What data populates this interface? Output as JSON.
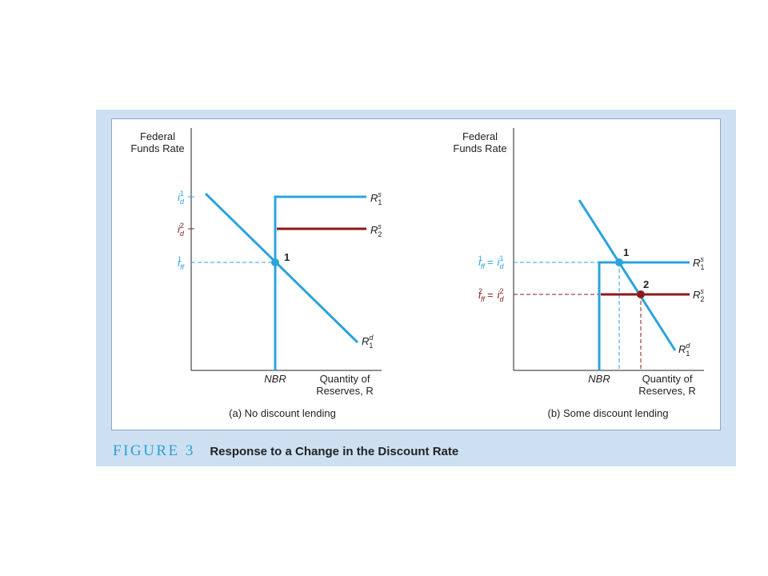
{
  "figure": {
    "number": "FIGURE 3",
    "title": "Response to a Change in the Discount Rate"
  },
  "colors": {
    "frame": "#cde0f2",
    "blue": "#2ba3dd",
    "darkred": "#8b1a1a",
    "axis": "#222222"
  },
  "panel_a": {
    "y_axis_label": [
      "Federal",
      "Funds Rate"
    ],
    "x_axis_label": [
      "Quantity of",
      "Reserves, R"
    ],
    "nbr_label": "NBR",
    "caption": "(a) No discount lending",
    "point_label": "1",
    "rate_labels": {
      "id1": {
        "base": "i",
        "sub": "d",
        "sup": "1"
      },
      "id2": {
        "base": "i",
        "sub": "d",
        "sup": "2"
      },
      "iff1": {
        "base": "i",
        "sub": "ff",
        "sup": "1"
      }
    },
    "curve_labels": {
      "supply1": {
        "base": "R",
        "sub": "1",
        "sup": "s"
      },
      "supply2": {
        "base": "R",
        "sub": "2",
        "sup": "s"
      },
      "demand1": {
        "base": "R",
        "sub": "1",
        "sup": "d"
      }
    }
  },
  "panel_b": {
    "y_axis_label": [
      "Federal",
      "Funds Rate"
    ],
    "x_axis_label": [
      "Quantity of",
      "Reserves, R"
    ],
    "nbr_label": "NBR",
    "caption": "(b) Some discount lending",
    "point_labels": [
      "1",
      "2"
    ],
    "rate_labels": {
      "eq1": {
        "left_base": "i",
        "left_sub": "ff",
        "left_sup": "1",
        "right_base": "i",
        "right_sub": "d",
        "right_sup": "1"
      },
      "eq2": {
        "left_base": "i",
        "left_sub": "ff",
        "left_sup": "2",
        "right_base": "i",
        "right_sub": "d",
        "right_sup": "2"
      }
    },
    "curve_labels": {
      "supply1": {
        "base": "R",
        "sub": "1",
        "sup": "s"
      },
      "supply2": {
        "base": "R",
        "sub": "2",
        "sup": "s"
      },
      "demand1": {
        "base": "R",
        "sub": "1",
        "sup": "d"
      }
    }
  }
}
